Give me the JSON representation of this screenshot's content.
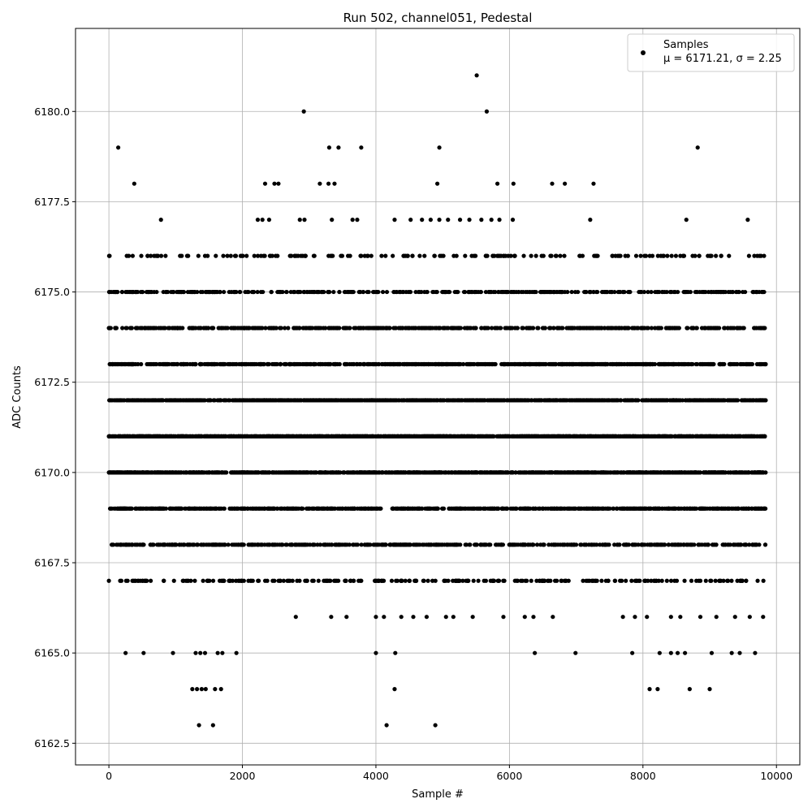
{
  "chart_data": {
    "type": "scatter",
    "title": "Run 502, channel051, Pedestal",
    "xlabel": "Sample #",
    "ylabel": "ADC Counts",
    "xlim": [
      -500,
      10350
    ],
    "ylim": [
      6161.9,
      6182.3
    ],
    "xticks": [
      0,
      2000,
      4000,
      6000,
      8000,
      10000
    ],
    "yticks": [
      6162.5,
      6165.0,
      6167.5,
      6170.0,
      6172.5,
      6175.0,
      6177.5,
      6180.0
    ],
    "grid": true,
    "legend_position": "top-right",
    "series": [
      {
        "name": "Samples",
        "legend_stats": "μ = 6171.21, σ = 2.25",
        "color": "#000000",
        "points": [
          [
            0,
            6167
          ],
          [
            140,
            6179
          ],
          [
            380,
            6178
          ],
          [
            780,
            6177
          ],
          [
            250,
            6165
          ],
          [
            520,
            6165
          ],
          [
            960,
            6165
          ],
          [
            1350,
            6163
          ],
          [
            1560,
            6163
          ],
          [
            1250,
            6164
          ],
          [
            1320,
            6164
          ],
          [
            1390,
            6164
          ],
          [
            1450,
            6164
          ],
          [
            1590,
            6164
          ],
          [
            1680,
            6164
          ],
          [
            1300,
            6165
          ],
          [
            1370,
            6165
          ],
          [
            1440,
            6165
          ],
          [
            1630,
            6165
          ],
          [
            1700,
            6165
          ],
          [
            1910,
            6165
          ],
          [
            2920,
            6180
          ],
          [
            2340,
            6178
          ],
          [
            2480,
            6178
          ],
          [
            2540,
            6178
          ],
          [
            3160,
            6178
          ],
          [
            3290,
            6178
          ],
          [
            3380,
            6178
          ],
          [
            3300,
            6179
          ],
          [
            3440,
            6179
          ],
          [
            3780,
            6179
          ],
          [
            2230,
            6177
          ],
          [
            2300,
            6177
          ],
          [
            2400,
            6177
          ],
          [
            2860,
            6177
          ],
          [
            2930,
            6177
          ],
          [
            3340,
            6177
          ],
          [
            3650,
            6177
          ],
          [
            3720,
            6177
          ],
          [
            2800,
            6166
          ],
          [
            3330,
            6166
          ],
          [
            3560,
            6166
          ],
          [
            4000,
            6165
          ],
          [
            4290,
            6165
          ],
          [
            4160,
            6163
          ],
          [
            4280,
            6164
          ],
          [
            4890,
            6163
          ],
          [
            5510,
            6181
          ],
          [
            5660,
            6180
          ],
          [
            4950,
            6179
          ],
          [
            4920,
            6178
          ],
          [
            5820,
            6178
          ],
          [
            6060,
            6178
          ],
          [
            6640,
            6178
          ],
          [
            6830,
            6178
          ],
          [
            7260,
            6178
          ],
          [
            4280,
            6177
          ],
          [
            4520,
            6177
          ],
          [
            4690,
            6177
          ],
          [
            4820,
            6177
          ],
          [
            4950,
            6177
          ],
          [
            5080,
            6177
          ],
          [
            5260,
            6177
          ],
          [
            5400,
            6177
          ],
          [
            5580,
            6177
          ],
          [
            5730,
            6177
          ],
          [
            5850,
            6177
          ],
          [
            6050,
            6177
          ],
          [
            7210,
            6177
          ],
          [
            4000,
            6166
          ],
          [
            4120,
            6166
          ],
          [
            4380,
            6166
          ],
          [
            4560,
            6166
          ],
          [
            4760,
            6166
          ],
          [
            5050,
            6166
          ],
          [
            5160,
            6166
          ],
          [
            5450,
            6166
          ],
          [
            5910,
            6166
          ],
          [
            6230,
            6166
          ],
          [
            6360,
            6166
          ],
          [
            6650,
            6166
          ],
          [
            6380,
            6165
          ],
          [
            6990,
            6165
          ],
          [
            7840,
            6165
          ],
          [
            8820,
            6179
          ],
          [
            8650,
            6177
          ],
          [
            9570,
            6177
          ],
          [
            8430,
            6176
          ],
          [
            8100,
            6164
          ],
          [
            8220,
            6164
          ],
          [
            8700,
            6164
          ],
          [
            9000,
            6164
          ],
          [
            8250,
            6165
          ],
          [
            8420,
            6165
          ],
          [
            8520,
            6165
          ],
          [
            8630,
            6165
          ],
          [
            9030,
            6165
          ],
          [
            9330,
            6165
          ],
          [
            9450,
            6165
          ],
          [
            9680,
            6165
          ],
          [
            7700,
            6166
          ],
          [
            7880,
            6166
          ],
          [
            8060,
            6166
          ],
          [
            8420,
            6166
          ],
          [
            8560,
            6166
          ],
          [
            8860,
            6166
          ],
          [
            9100,
            6166
          ],
          [
            9380,
            6166
          ],
          [
            9600,
            6166
          ],
          [
            9800,
            6166
          ]
        ]
      }
    ],
    "dense_levels": [
      {
        "y": 6176,
        "count": 170
      },
      {
        "y": 6175,
        "count": 440
      },
      {
        "y": 6174,
        "count": 560
      },
      {
        "y": 6173,
        "count": 820
      },
      {
        "y": 6172,
        "count": 1150
      },
      {
        "y": 6171,
        "count": 1450
      },
      {
        "y": 6170,
        "count": 1150
      },
      {
        "y": 6169,
        "count": 820
      },
      {
        "y": 6168,
        "count": 560
      },
      {
        "y": 6167,
        "count": 260
      }
    ]
  }
}
